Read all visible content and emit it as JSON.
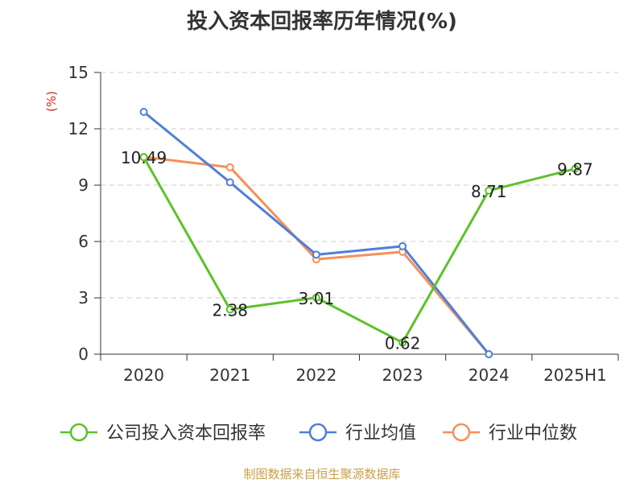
{
  "title": "投入资本回报率历年情况(%)",
  "source": "制图数据来自恒生聚源数据库",
  "chart_data": {
    "type": "line",
    "title": "投入资本回报率历年情况(%)",
    "ylabel": "(%)",
    "categories": [
      "2020",
      "2021",
      "2022",
      "2023",
      "2024",
      "2025H1"
    ],
    "ylim": [
      0,
      15
    ],
    "yticks": [
      0,
      3,
      6,
      9,
      12,
      15
    ],
    "grid": true,
    "legend_position": "bottom",
    "series": [
      {
        "name": "公司投入资本回报率",
        "color": "#5cc22a",
        "values": [
          10.49,
          2.38,
          3.01,
          0.62,
          8.71,
          9.87
        ],
        "labels": [
          "10.49",
          "2.38",
          "3.01",
          "0.62",
          "8.71",
          "9.87"
        ]
      },
      {
        "name": "行业均值",
        "color": "#4f7fd9",
        "values": [
          12.9,
          9.15,
          5.3,
          5.75,
          0,
          null
        ],
        "labels": []
      },
      {
        "name": "行业中位数",
        "color": "#f5905a",
        "values": [
          10.5,
          9.95,
          5.05,
          5.45,
          0,
          null
        ],
        "labels": []
      }
    ]
  }
}
